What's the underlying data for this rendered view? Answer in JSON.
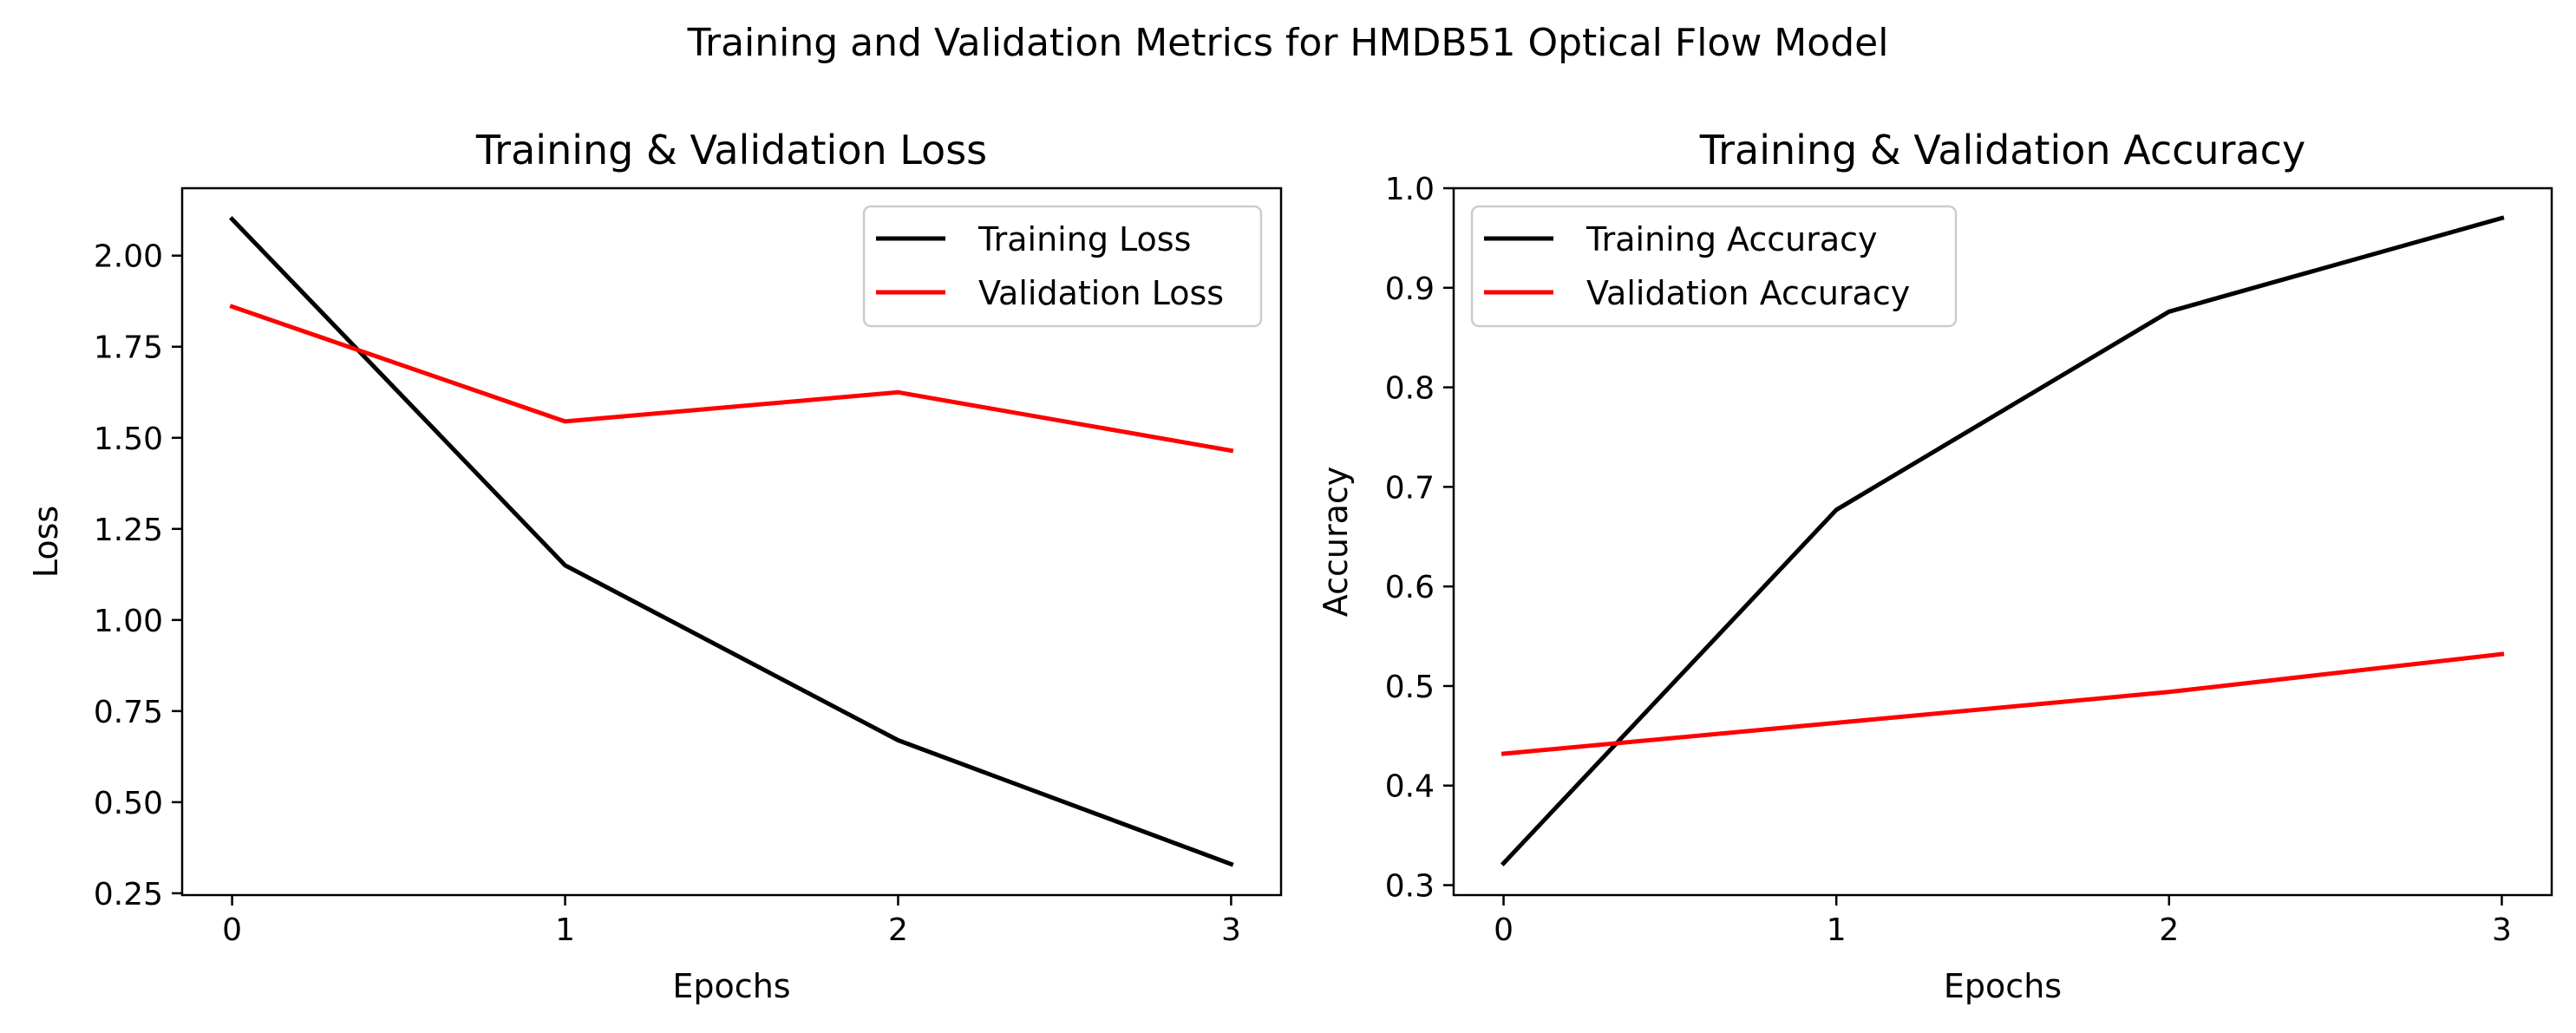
{
  "figure": {
    "suptitle": "Training and Validation Metrics for HMDB51 Optical Flow Model"
  },
  "chart_data": [
    {
      "type": "line",
      "title": "Training & Validation Loss",
      "xlabel": "Epochs",
      "ylabel": "Loss",
      "x": [
        0,
        1,
        2,
        3
      ],
      "xlim": [
        -0.15,
        3.15
      ],
      "ylim": [
        0.245,
        2.185
      ],
      "xticks": [
        0,
        1,
        2,
        3
      ],
      "yticks": [
        0.25,
        0.5,
        0.75,
        1.0,
        1.25,
        1.5,
        1.75,
        2.0
      ],
      "ytick_labels": [
        "0.25",
        "0.50",
        "0.75",
        "1.00",
        "1.25",
        "1.50",
        "1.75",
        "2.00"
      ],
      "grid": false,
      "legend_position": "upper right",
      "series": [
        {
          "name": "Training Loss",
          "color": "#000000",
          "values": [
            2.1,
            1.15,
            0.67,
            0.33
          ]
        },
        {
          "name": "Validation Loss",
          "color": "#ff0000",
          "values": [
            1.86,
            1.545,
            1.625,
            1.465
          ]
        }
      ]
    },
    {
      "type": "line",
      "title": "Training & Validation Accuracy",
      "xlabel": "Epochs",
      "ylabel": "Accuracy",
      "x": [
        0,
        1,
        2,
        3
      ],
      "xlim": [
        -0.15,
        3.15
      ],
      "ylim": [
        0.29,
        1.0
      ],
      "xticks": [
        0,
        1,
        2,
        3
      ],
      "yticks": [
        0.3,
        0.4,
        0.5,
        0.6,
        0.7,
        0.8,
        0.9,
        1.0
      ],
      "ytick_labels": [
        "0.3",
        "0.4",
        "0.5",
        "0.6",
        "0.7",
        "0.8",
        "0.9",
        "1.0"
      ],
      "grid": false,
      "legend_position": "upper left",
      "series": [
        {
          "name": "Training Accuracy",
          "color": "#000000",
          "values": [
            0.322,
            0.677,
            0.876,
            0.97
          ]
        },
        {
          "name": "Validation Accuracy",
          "color": "#ff0000",
          "values": [
            0.432,
            0.463,
            0.494,
            0.532
          ]
        }
      ]
    }
  ]
}
